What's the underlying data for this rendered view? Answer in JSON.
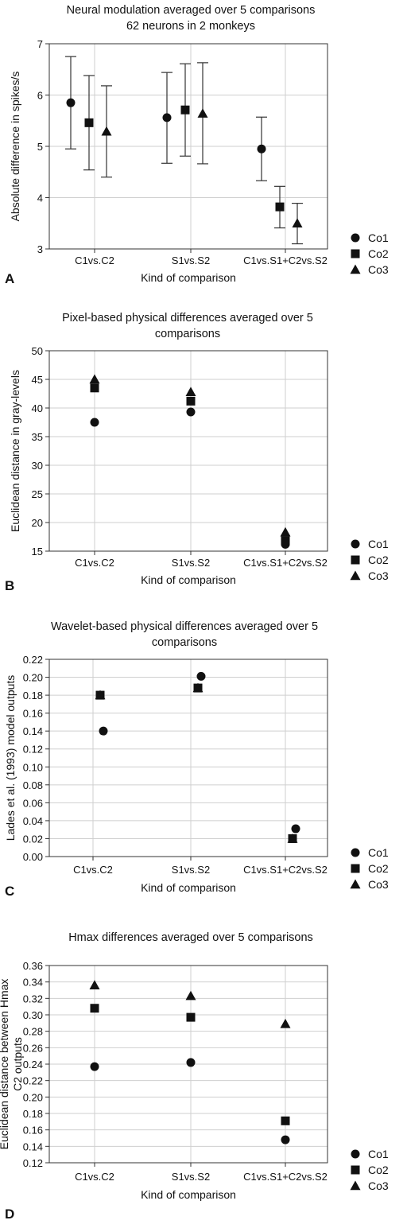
{
  "panels": [
    {
      "letter": "A",
      "title_lines": [
        "Neural modulation averaged over 5 comparisons",
        "62 neurons in 2 monkeys"
      ],
      "ylabel_lines": [
        "Absolute difference in spikes/s"
      ],
      "xlabel": "Kind of comparison",
      "legend": [
        "Co1",
        "Co2",
        "Co3"
      ],
      "chart_data": {
        "type": "scatter",
        "title": "Neural modulation averaged over 5 comparisons\n62 neurons in 2 monkeys",
        "xlabel": "Kind of comparison",
        "ylabel": "Absolute difference in spikes/s",
        "categories": [
          "C1vs.C2",
          "S1vs.S2",
          "C1vs.S1+C2vs.S2"
        ],
        "ylim": [
          3,
          7
        ],
        "yticks": [
          "3",
          "4",
          "5",
          "6",
          "7"
        ],
        "grid": true,
        "legend_position": "right",
        "series": [
          {
            "name": "Co1",
            "marker": "circle",
            "values": [
              5.85,
              5.56,
              4.95
            ],
            "err_low": [
              4.95,
              4.67,
              4.33
            ],
            "err_high": [
              6.75,
              6.44,
              5.57
            ]
          },
          {
            "name": "Co2",
            "marker": "square",
            "values": [
              5.46,
              5.71,
              3.82
            ],
            "err_low": [
              4.54,
              4.81,
              3.41
            ],
            "err_high": [
              6.38,
              6.61,
              4.22
            ]
          },
          {
            "name": "Co3",
            "marker": "triangle",
            "values": [
              5.29,
              5.64,
              3.5
            ],
            "err_low": [
              4.4,
              4.66,
              3.1
            ],
            "err_high": [
              6.18,
              6.63,
              3.89
            ]
          }
        ]
      }
    },
    {
      "letter": "B",
      "title_lines": [
        "Pixel-based physical differences averaged over 5",
        "comparisons"
      ],
      "ylabel_lines": [
        "Euclidean distance in gray-levels"
      ],
      "xlabel": "Kind of comparison",
      "legend": [
        "Co1",
        "Co2",
        "Co3"
      ],
      "chart_data": {
        "type": "scatter",
        "title": "Pixel-based physical differences averaged over 5\ncomparisons",
        "xlabel": "Kind of comparison",
        "ylabel": "Euclidean distance in gray-levels",
        "categories": [
          "C1vs.C2",
          "S1vs.S2",
          "C1vs.S1+C2vs.S2"
        ],
        "ylim": [
          15,
          50
        ],
        "yticks": [
          "15",
          "20",
          "25",
          "30",
          "35",
          "40",
          "45",
          "50"
        ],
        "grid": true,
        "legend_position": "right",
        "series": [
          {
            "name": "Co1",
            "marker": "circle",
            "values": [
              37.5,
              39.3,
              16.2
            ]
          },
          {
            "name": "Co2",
            "marker": "square",
            "values": [
              43.5,
              41.2,
              16.8
            ]
          },
          {
            "name": "Co3",
            "marker": "triangle",
            "values": [
              45.0,
              42.8,
              18.3
            ]
          }
        ]
      }
    },
    {
      "letter": "C",
      "title_lines": [
        "Wavelet-based physical differences averaged over 5",
        "comparisons"
      ],
      "ylabel_lines": [
        "Lades et al. (1993) model outputs"
      ],
      "xlabel": "Kind of comparison",
      "legend": [
        "Co1",
        "Co2",
        "Co3"
      ],
      "chart_data": {
        "type": "scatter",
        "title": "Wavelet-based physical differences averaged over 5\ncomparisons",
        "xlabel": "Kind of comparison",
        "ylabel": "Lades et al. (1993) model outputs",
        "categories": [
          "C1vs.C2",
          "S1vs.S2",
          "C1vs.S1+C2vs.S2"
        ],
        "ylim": [
          0,
          0.22
        ],
        "yticks": [
          "0.00",
          "0.02",
          "0.04",
          "0.06",
          "0.08",
          "0.10",
          "0.12",
          "0.14",
          "0.16",
          "0.18",
          "0.20",
          "0.22"
        ],
        "grid": true,
        "legend_position": "right",
        "series": [
          {
            "name": "Co1",
            "marker": "circle",
            "values": [
              0.14,
              0.201,
              0.031
            ]
          },
          {
            "name": "Co2",
            "marker": "square",
            "values": [
              0.18,
              0.188,
              0.02
            ]
          },
          {
            "name": "Co3",
            "marker": "triangle",
            "values": [
              0.18,
              0.188,
              0.02
            ]
          }
        ]
      }
    },
    {
      "letter": "D",
      "title_lines": [
        "Hmax differences averaged over 5 comparisons"
      ],
      "ylabel_lines": [
        "Euclidean distance between Hmax",
        "C2 outputs"
      ],
      "xlabel": "Kind of comparison",
      "legend": [
        "Co1",
        "Co2",
        "Co3"
      ],
      "chart_data": {
        "type": "scatter",
        "title": "Hmax differences averaged over 5 comparisons",
        "xlabel": "Kind of comparison",
        "ylabel": "Euclidean distance between Hmax\nC2 outputs",
        "categories": [
          "C1vs.C2",
          "S1vs.S2",
          "C1vs.S1+C2vs.S2"
        ],
        "ylim": [
          0.12,
          0.36
        ],
        "yticks": [
          "0.12",
          "0.14",
          "0.16",
          "0.18",
          "0.20",
          "0.22",
          "0.24",
          "0.26",
          "0.28",
          "0.30",
          "0.32",
          "0.34",
          "0.36"
        ],
        "grid": true,
        "legend_position": "right",
        "series": [
          {
            "name": "Co1",
            "marker": "circle",
            "values": [
              0.237,
              0.242,
              0.148
            ]
          },
          {
            "name": "Co2",
            "marker": "square",
            "values": [
              0.308,
              0.297,
              0.171
            ]
          },
          {
            "name": "Co3",
            "marker": "triangle",
            "values": [
              0.336,
              0.323,
              0.289
            ]
          }
        ]
      }
    }
  ]
}
